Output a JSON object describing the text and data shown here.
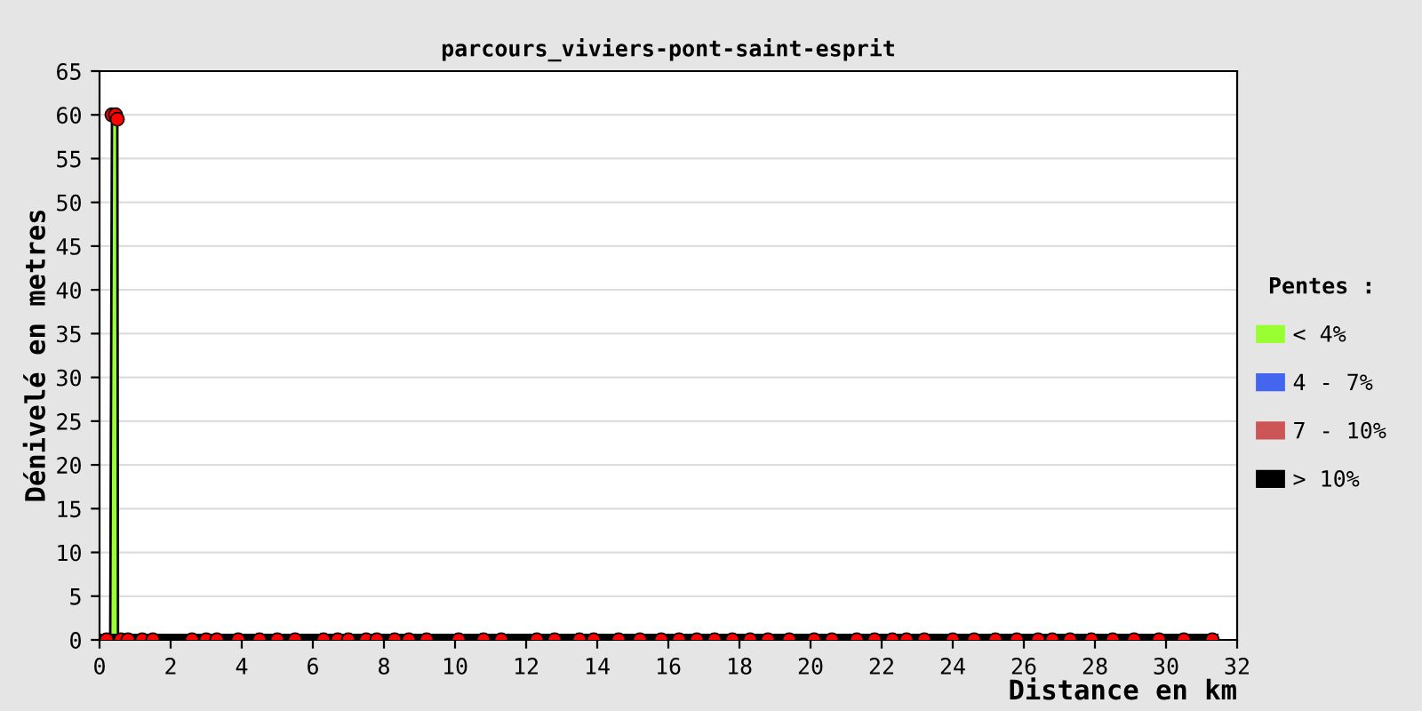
{
  "chart_data": {
    "type": "line",
    "title": "parcours_viviers-pont-saint-esprit",
    "xlabel": "Distance en km",
    "ylabel": "Dénivelé en metres",
    "legend_title": "Pentes :",
    "series": [
      {
        "name": "< 4%",
        "type": "area",
        "color": "#99ff33",
        "x": [
          0.3,
          0.35,
          0.5,
          0.52
        ],
        "values": [
          0,
          60,
          60,
          0
        ]
      },
      {
        "name": "4 - 7%",
        "type": "area",
        "color": "#4466ee"
      },
      {
        "name": "7 - 10%",
        "type": "area",
        "color": "#cc5555"
      },
      {
        "name": "> 10%",
        "color": "#000000",
        "x": [
          0,
          31.3
        ],
        "values": [
          0,
          0
        ]
      },
      {
        "type": "scatter",
        "marker": "circle",
        "color": "#ff0000",
        "x": [
          0.35,
          0.45,
          0.5,
          0.2,
          0.6,
          0.8,
          1.2,
          1.5,
          2.6,
          3.0,
          3.3,
          3.9,
          4.5,
          5.0,
          5.5,
          6.3,
          6.7,
          7.0,
          7.5,
          7.8,
          8.3,
          8.7,
          9.2,
          10.1,
          10.8,
          11.3,
          12.3,
          12.8,
          13.5,
          13.9,
          14.6,
          15.2,
          15.8,
          16.3,
          16.8,
          17.3,
          17.8,
          18.3,
          18.8,
          19.4,
          20.1,
          20.6,
          21.3,
          21.8,
          22.3,
          22.7,
          23.2,
          24.0,
          24.6,
          25.2,
          25.8,
          26.4,
          26.8,
          27.3,
          27.9,
          28.5,
          29.1,
          29.8,
          30.5,
          31.3
        ],
        "values": [
          60,
          60,
          59.5,
          0,
          0,
          0,
          0,
          0,
          0,
          0,
          0,
          0,
          0,
          0,
          0,
          0,
          0,
          0,
          0,
          0,
          0,
          0,
          0,
          0,
          0,
          0,
          0,
          0,
          0,
          0,
          0,
          0,
          0,
          0,
          0,
          0,
          0,
          0,
          0,
          0,
          0,
          0,
          0,
          0,
          0,
          0,
          0,
          0,
          0,
          0,
          0,
          0,
          0,
          0,
          0,
          0,
          0,
          0,
          0,
          0
        ]
      }
    ],
    "xlim": [
      0,
      32
    ],
    "xticks": [
      0,
      2,
      4,
      6,
      8,
      10,
      12,
      14,
      16,
      18,
      20,
      22,
      24,
      26,
      28,
      30,
      32
    ],
    "ylim": [
      0,
      65
    ],
    "yticks": [
      0,
      5,
      10,
      15,
      20,
      25,
      30,
      35,
      40,
      45,
      50,
      55,
      60,
      65
    ],
    "grid": "y",
    "legend": "right"
  }
}
